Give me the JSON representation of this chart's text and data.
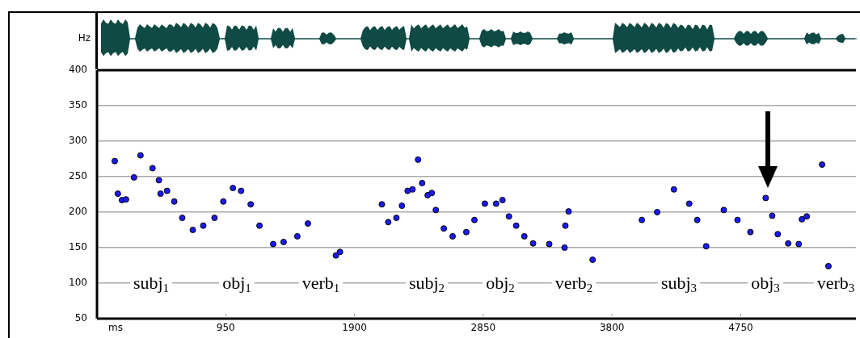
{
  "chart_data": {
    "type": "scatter",
    "xlabel": "ms",
    "ylabel": "Hz",
    "xlim": [
      0,
      5600
    ],
    "xticks": [
      950,
      1900,
      2850,
      3800,
      4750
    ],
    "ylim": [
      50,
      400
    ],
    "yticks": [
      50,
      100,
      150,
      200,
      250,
      300,
      350,
      400
    ],
    "grid": "y",
    "marker": "circle",
    "legend": false,
    "series": [
      {
        "color": "#1a1aff",
        "x": [
          131,
          154,
          184,
          214,
          273,
          321,
          410,
          457,
          469,
          517,
          570,
          629,
          707,
          784,
          867,
          932,
          1003,
          1063,
          1134,
          1199,
          1300,
          1377,
          1478,
          1556,
          1763,
          1793,
          2102,
          2149,
          2209,
          2250,
          2292,
          2328,
          2369,
          2399,
          2440,
          2470,
          2500,
          2559,
          2624,
          2725,
          2785,
          2862,
          2945,
          2992,
          3040,
          3093,
          3153,
          3218,
          3337,
          3450,
          3456,
          3480,
          3657,
          4020,
          4133,
          4257,
          4370,
          4429,
          4495,
          4625,
          4726,
          4821,
          4934,
          4982,
          5023,
          5100,
          5178,
          5201,
          5237,
          5350,
          5397
        ],
        "values": [
          272,
          226,
          217,
          218,
          249,
          280,
          262,
          245,
          226,
          230,
          215,
          192,
          175,
          181,
          192,
          215,
          234,
          230,
          211,
          181,
          155,
          158,
          166,
          184,
          139,
          144,
          211,
          186,
          192,
          209,
          230,
          232,
          274,
          241,
          224,
          227,
          203,
          177,
          166,
          172,
          189,
          212,
          212,
          217,
          194,
          181,
          166,
          156,
          155,
          150,
          181,
          201,
          133,
          189,
          200,
          232,
          212,
          189,
          152,
          203,
          189,
          172,
          220,
          195,
          169,
          156,
          155,
          190,
          194,
          267,
          124
        ]
      }
    ],
    "annotations": [
      "subj$_{1}$",
      "obj$_{1}$",
      "verb$_{1}$",
      "subj$_{2}$",
      "obj$_{2}$",
      "verb$_{2}$",
      "subj$_{3}$",
      "obj$_{3}$",
      "verb$_{3}$"
    ]
  }
}
